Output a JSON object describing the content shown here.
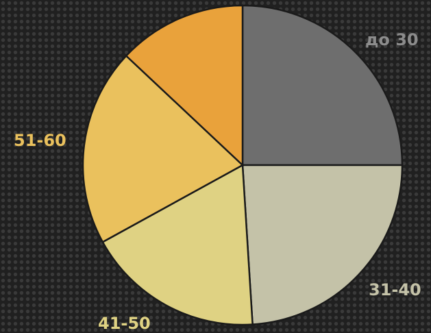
{
  "chart_data": {
    "type": "pie",
    "start_angle_deg": 0,
    "direction": "clockwise",
    "slices": [
      {
        "label": "до 30",
        "value": 25,
        "color": "#6e6e6e",
        "label_color": "#8c8c8c"
      },
      {
        "label": "31-40",
        "value": 24,
        "color": "#c4c2a8",
        "label_color": "#c4c2a8"
      },
      {
        "label": "41-50",
        "value": 18,
        "color": "#dfd283",
        "label_color": "#dfd283"
      },
      {
        "label": "51-60",
        "value": 20,
        "color": "#eac15d",
        "label_color": "#eac15d"
      },
      {
        "label": "",
        "value": 13,
        "color": "#e9a23b",
        "label_color": "#e9a23b"
      }
    ]
  }
}
